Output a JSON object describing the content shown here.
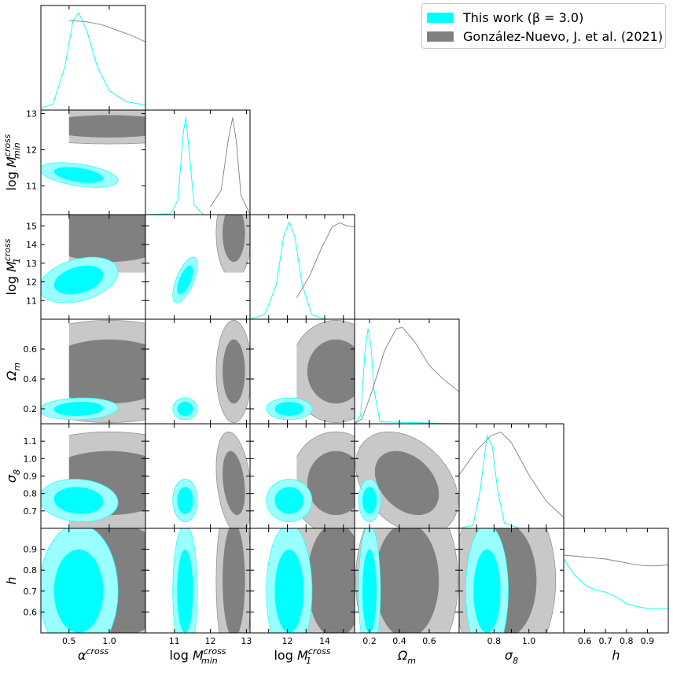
{
  "chart_data": {
    "type": "corner",
    "params": [
      {
        "key": "alpha",
        "label": "α",
        "label_sup": "cross",
        "ticks": [
          0.5,
          1.0
        ],
        "tick_labels": [
          "0.5",
          "1.0"
        ],
        "range": [
          0.15,
          1.45
        ]
      },
      {
        "key": "Mmin",
        "label": "log M",
        "label_sub": "min",
        "label_sup": "cross",
        "ticks": [
          11,
          12,
          13
        ],
        "tick_labels": [
          "11",
          "12",
          "13"
        ],
        "range": [
          10.2,
          13.1
        ]
      },
      {
        "key": "M1",
        "label": "log M",
        "label_sub": "1",
        "label_sup": "cross",
        "ticks": [
          11,
          12,
          13,
          14,
          15
        ],
        "tick_labels": [
          "11",
          "12",
          "13",
          "14",
          "15"
        ],
        "tick_labels_x": [
          "12",
          "14"
        ],
        "range": [
          10.0,
          15.6
        ]
      },
      {
        "key": "Om",
        "label": "Ω",
        "label_sub": "m",
        "ticks": [
          0.2,
          0.4,
          0.6
        ],
        "tick_labels": [
          "0.2",
          "0.4",
          "0.6"
        ],
        "range": [
          0.1,
          0.8
        ]
      },
      {
        "key": "s8",
        "label": "σ",
        "label_sub": "8",
        "ticks": [
          0.7,
          0.8,
          0.9,
          1.0,
          1.1
        ],
        "tick_labels": [
          "0.7",
          "0.8",
          "0.9",
          "1.0",
          "1.1"
        ],
        "tick_labels_x": [
          "0.8",
          "1.0"
        ],
        "range": [
          0.6,
          1.2
        ]
      },
      {
        "key": "h",
        "label": "h",
        "ticks": [
          0.6,
          0.7,
          0.8,
          0.9
        ],
        "tick_labels": [
          "0.6",
          "0.7",
          "0.8",
          "0.9"
        ],
        "range": [
          0.5,
          1.0
        ]
      }
    ],
    "series": [
      {
        "name": "This work (β = 3.0)",
        "color": "#00ffff",
        "inner_color": "#00ffff",
        "outer_color": "#99ffff",
        "mean": [
          0.62,
          11.3,
          12.1,
          0.2,
          0.76,
          0.7
        ],
        "sigma": [
          0.2,
          0.14,
          0.5,
          0.03,
          0.05,
          0.13
        ],
        "corr": [
          [
            0,
            1,
            -0.45
          ],
          [
            0,
            2,
            0.35
          ],
          [
            1,
            2,
            0.65
          ],
          [
            0,
            3,
            0.1
          ],
          [
            0,
            4,
            -0.1
          ]
        ],
        "marginals": {
          "alpha": [
            [
              0.15,
              0.02
            ],
            [
              0.3,
              0.06
            ],
            [
              0.45,
              0.45
            ],
            [
              0.55,
              0.92
            ],
            [
              0.62,
              1.0
            ],
            [
              0.72,
              0.82
            ],
            [
              0.85,
              0.45
            ],
            [
              1.0,
              0.2
            ],
            [
              1.2,
              0.09
            ],
            [
              1.45,
              0.05
            ]
          ],
          "Mmin": [
            [
              10.2,
              0.0
            ],
            [
              10.9,
              0.01
            ],
            [
              11.1,
              0.15
            ],
            [
              11.25,
              0.85
            ],
            [
              11.32,
              1.0
            ],
            [
              11.4,
              0.7
            ],
            [
              11.55,
              0.1
            ],
            [
              11.8,
              0.0
            ],
            [
              13.1,
              0.0
            ]
          ],
          "M1": [
            [
              10.0,
              0.0
            ],
            [
              10.8,
              0.05
            ],
            [
              11.4,
              0.35
            ],
            [
              11.8,
              0.85
            ],
            [
              12.1,
              1.0
            ],
            [
              12.4,
              0.85
            ],
            [
              12.8,
              0.35
            ],
            [
              13.3,
              0.05
            ],
            [
              14.0,
              0.0
            ],
            [
              15.6,
              0.0
            ]
          ],
          "Om": [
            [
              0.1,
              0.0
            ],
            [
              0.14,
              0.08
            ],
            [
              0.17,
              0.75
            ],
            [
              0.19,
              0.98
            ],
            [
              0.21,
              0.8
            ],
            [
              0.23,
              0.35
            ],
            [
              0.27,
              0.02
            ],
            [
              0.8,
              0.0
            ]
          ],
          "s8": [
            [
              0.6,
              0.0
            ],
            [
              0.68,
              0.03
            ],
            [
              0.72,
              0.38
            ],
            [
              0.76,
              0.95
            ],
            [
              0.79,
              0.85
            ],
            [
              0.82,
              0.4
            ],
            [
              0.86,
              0.05
            ],
            [
              0.95,
              0.0
            ],
            [
              1.2,
              0.0
            ]
          ],
          "h": [
            [
              0.5,
              0.76
            ],
            [
              0.55,
              0.6
            ],
            [
              0.6,
              0.5
            ],
            [
              0.65,
              0.44
            ],
            [
              0.7,
              0.42
            ],
            [
              0.75,
              0.37
            ],
            [
              0.8,
              0.3
            ],
            [
              0.85,
              0.27
            ],
            [
              0.9,
              0.25
            ],
            [
              0.95,
              0.25
            ],
            [
              1.0,
              0.25
            ]
          ]
        }
      },
      {
        "name": "González-Nuevo, J. et al. (2021)",
        "color": "#808080",
        "inner_color": "#808080",
        "outer_color": "#c8c8c8",
        "mean": [
          1.0,
          12.65,
          14.6,
          0.45,
          0.86,
          0.75
        ],
        "sigma": [
          0.55,
          0.2,
          1.0,
          0.14,
          0.12,
          0.18
        ],
        "corr": [
          [
            3,
            4,
            -0.35
          ],
          [
            1,
            4,
            -0.3
          ]
        ],
        "bounds": {
          "alpha": [
            0.5,
            1.45
          ],
          "M1": [
            12.5,
            15.6
          ]
        },
        "marginals": {
          "alpha": [
            [
              0.5,
              0.92
            ],
            [
              0.7,
              0.91
            ],
            [
              0.9,
              0.88
            ],
            [
              1.1,
              0.82
            ],
            [
              1.3,
              0.76
            ],
            [
              1.45,
              0.7
            ]
          ],
          "Mmin": [
            [
              12.0,
              0.08
            ],
            [
              12.3,
              0.25
            ],
            [
              12.5,
              0.78
            ],
            [
              12.62,
              1.0
            ],
            [
              12.72,
              0.75
            ],
            [
              12.85,
              0.2
            ],
            [
              13.1,
              0.0
            ]
          ],
          "M1": [
            [
              12.5,
              0.22
            ],
            [
              13.2,
              0.45
            ],
            [
              13.8,
              0.72
            ],
            [
              14.4,
              0.95
            ],
            [
              14.8,
              0.99
            ],
            [
              15.2,
              0.96
            ],
            [
              15.6,
              0.95
            ]
          ],
          "Om": [
            [
              0.1,
              0.0
            ],
            [
              0.15,
              0.05
            ],
            [
              0.22,
              0.35
            ],
            [
              0.3,
              0.75
            ],
            [
              0.38,
              0.98
            ],
            [
              0.42,
              0.99
            ],
            [
              0.5,
              0.85
            ],
            [
              0.6,
              0.6
            ],
            [
              0.7,
              0.45
            ],
            [
              0.8,
              0.33
            ]
          ],
          "s8": [
            [
              0.6,
              0.55
            ],
            [
              0.7,
              0.8
            ],
            [
              0.78,
              0.95
            ],
            [
              0.84,
              0.99
            ],
            [
              0.9,
              0.88
            ],
            [
              1.0,
              0.55
            ],
            [
              1.1,
              0.28
            ],
            [
              1.2,
              0.11
            ]
          ],
          "h": [
            [
              0.5,
              0.8
            ],
            [
              0.6,
              0.78
            ],
            [
              0.65,
              0.77
            ],
            [
              0.7,
              0.76
            ],
            [
              0.75,
              0.74
            ],
            [
              0.8,
              0.72
            ],
            [
              0.85,
              0.7
            ],
            [
              0.9,
              0.69
            ],
            [
              0.95,
              0.69
            ],
            [
              1.0,
              0.7
            ]
          ]
        }
      }
    ],
    "legend": {
      "position": "top-right"
    }
  }
}
